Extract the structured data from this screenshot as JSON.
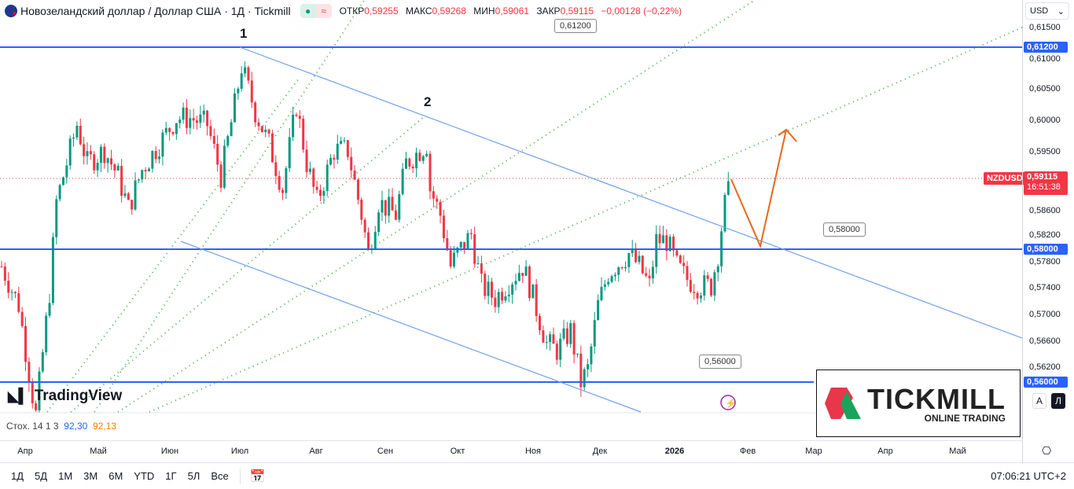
{
  "header": {
    "title": "Новозеландский доллар / Доллар США · 1Д · Tickmill",
    "open_label": "ОТКР",
    "open": "0,59255",
    "high_label": "МАКС",
    "high": "0,59268",
    "low_label": "МИН",
    "low": "0,59061",
    "close_label": "ЗАКР",
    "close": "0,59115",
    "change": "−0,00128 (−0,22%)",
    "market_open_icon": "dot",
    "quote_icon": "≈"
  },
  "price_axis": {
    "currency": "USD",
    "ticks": [
      "0,61500",
      "0,61000",
      "0,60500",
      "0,60000",
      "0,59500",
      "0,58600",
      "0,58200",
      "0,57800",
      "0,57400",
      "0,57000",
      "0,56600",
      "0,56200"
    ],
    "levels": [
      "0,61200",
      "0,58000",
      "0,56000"
    ],
    "symbol": "NZDUSD",
    "last_price": "0,59115",
    "countdown": "16:51:38",
    "mode_a": "A",
    "mode_l": "Л"
  },
  "time_axis": [
    "Апр",
    "Май",
    "Июн",
    "Июл",
    "Авг",
    "Сен",
    "Окт",
    "Ноя",
    "Дек",
    "2026",
    "Фев",
    "Мар",
    "Апр",
    "Май"
  ],
  "annotations": {
    "wave1": "1",
    "wave2": "2",
    "level_labels": [
      "0,61200",
      "0,58000",
      "0,56000"
    ]
  },
  "indicator": {
    "name": "Стох. 14 1 3",
    "k": "92,30",
    "d": "92,13",
    "k_color": "#2962ff",
    "d_color": "#f57c00"
  },
  "bottom_bar": {
    "ranges": [
      "1Д",
      "5Д",
      "1М",
      "3М",
      "6М",
      "YTD",
      "1Г",
      "5Л",
      "Все"
    ],
    "clock": "07:06:21 UTC+2"
  },
  "branding": {
    "tradingview": "TradingView",
    "tickmill": "TICKMILL",
    "tickmill_sub": "ONLINE TRADING"
  },
  "colors": {
    "up": "#089981",
    "down": "#f23645",
    "level": "#2962ff",
    "trend": "#6fa0e8",
    "fan": "#4caf50",
    "forecast": "#e8671c"
  },
  "chart_data": {
    "type": "candlestick",
    "interval": "1D",
    "price_path": [
      [
        0,
        0.578
      ],
      [
        5,
        0.572
      ],
      [
        9,
        0.558
      ],
      [
        10,
        0.555
      ],
      [
        14,
        0.574
      ],
      [
        16,
        0.588
      ],
      [
        18,
        0.592
      ],
      [
        22,
        0.6
      ],
      [
        25,
        0.594
      ],
      [
        30,
        0.596
      ],
      [
        34,
        0.592
      ],
      [
        37,
        0.587
      ],
      [
        41,
        0.593
      ],
      [
        46,
        0.597
      ],
      [
        51,
        0.601
      ],
      [
        55,
        0.601
      ],
      [
        60,
        0.6
      ],
      [
        64,
        0.592
      ],
      [
        68,
        0.603
      ],
      [
        70,
        0.609
      ],
      [
        74,
        0.602
      ],
      [
        78,
        0.597
      ],
      [
        82,
        0.59
      ],
      [
        86,
        0.603
      ],
      [
        89,
        0.594
      ],
      [
        92,
        0.588
      ],
      [
        97,
        0.596
      ],
      [
        101,
        0.596
      ],
      [
        105,
        0.586
      ],
      [
        107,
        0.58
      ],
      [
        110,
        0.588
      ],
      [
        115,
        0.586
      ],
      [
        118,
        0.594
      ],
      [
        122,
        0.596
      ],
      [
        124,
        0.597
      ],
      [
        125,
        0.59
      ],
      [
        128,
        0.586
      ],
      [
        131,
        0.578
      ],
      [
        133,
        0.58
      ],
      [
        137,
        0.583
      ],
      [
        140,
        0.575
      ],
      [
        144,
        0.573
      ],
      [
        147,
        0.575
      ],
      [
        152,
        0.578
      ],
      [
        154,
        0.575
      ],
      [
        159,
        0.566
      ],
      [
        162,
        0.565
      ],
      [
        166,
        0.568
      ],
      [
        169,
        0.56
      ],
      [
        171,
        0.562
      ],
      [
        174,
        0.572
      ],
      [
        177,
        0.577
      ],
      [
        183,
        0.58
      ],
      [
        186,
        0.578
      ],
      [
        189,
        0.575
      ],
      [
        191,
        0.582
      ],
      [
        194,
        0.582
      ],
      [
        197,
        0.578
      ],
      [
        200,
        0.576
      ],
      [
        203,
        0.575
      ],
      [
        207,
        0.575
      ],
      [
        209,
        0.58
      ],
      [
        210,
        0.584
      ],
      [
        212,
        0.5912
      ]
    ]
  }
}
